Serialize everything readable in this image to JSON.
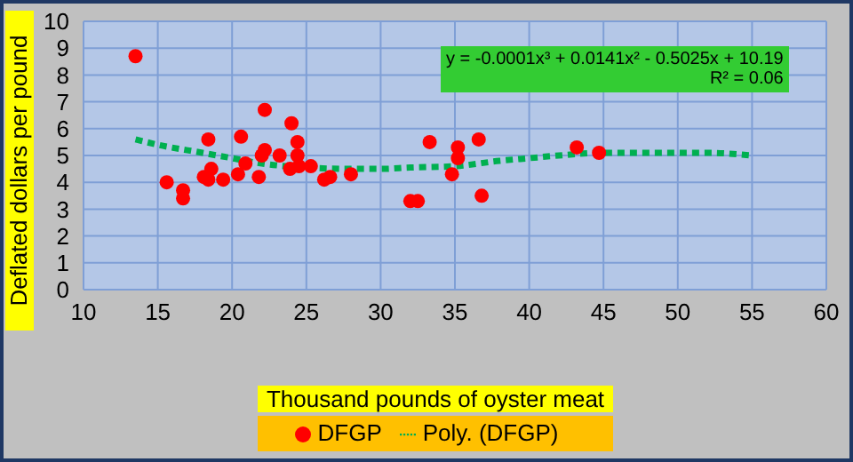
{
  "chart_data": {
    "type": "scatter",
    "xlabel": "Thousand pounds of oyster meat",
    "ylabel": "Deflated dollars per pound",
    "annotations": [
      "y = -0.0001x³ + 0.0141x² - 0.5025x + 10.19",
      "R² = 0.06"
    ],
    "xlim": [
      10,
      60
    ],
    "xticks": [
      10,
      15,
      20,
      25,
      30,
      35,
      40,
      45,
      50,
      55,
      60
    ],
    "ylim": [
      0,
      10
    ],
    "yticks": [
      0,
      1,
      2,
      3,
      4,
      5,
      6,
      7,
      8,
      9,
      10
    ],
    "grid": true,
    "legend": "bottom",
    "series": [
      {
        "name": "DFGP",
        "color": "#ff0000",
        "marker": "circle",
        "x": [
          13.5,
          15.6,
          16.7,
          16.7,
          18.4,
          18.6,
          18.1,
          18.4,
          19.4,
          20.4,
          20.6,
          20.9,
          21.8,
          22.2,
          22.0,
          22.2,
          23.2,
          24.0,
          24.4,
          24.4,
          23.9,
          24.5,
          25.3,
          26.2,
          26.6,
          28.0,
          33.3,
          32.0,
          32.5,
          35.2,
          35.2,
          34.8,
          36.6,
          36.8,
          43.2,
          44.7
        ],
        "values": [
          8.7,
          4.0,
          3.7,
          3.4,
          5.6,
          4.5,
          4.2,
          4.1,
          4.1,
          4.3,
          5.7,
          4.7,
          4.2,
          6.7,
          5.0,
          5.2,
          5.0,
          6.2,
          5.5,
          5.0,
          4.5,
          4.6,
          4.6,
          4.1,
          4.2,
          4.3,
          5.5,
          3.3,
          3.3,
          5.3,
          4.9,
          4.3,
          5.6,
          3.5,
          5.3,
          5.1
        ]
      },
      {
        "name": "Poly. (DFGP)",
        "type": "line",
        "color": "#00b050",
        "line_style": "dotted",
        "marker": "none",
        "x": [
          13.5,
          15,
          18,
          20,
          22,
          25,
          28,
          30,
          32,
          35,
          38,
          40,
          42,
          45,
          48,
          50,
          52,
          55
        ],
        "values": [
          5.6,
          5.4,
          5.1,
          4.9,
          4.7,
          4.55,
          4.5,
          4.5,
          4.55,
          4.6,
          4.8,
          4.9,
          5.0,
          5.1,
          5.1,
          5.1,
          5.1,
          5.0
        ]
      }
    ]
  }
}
